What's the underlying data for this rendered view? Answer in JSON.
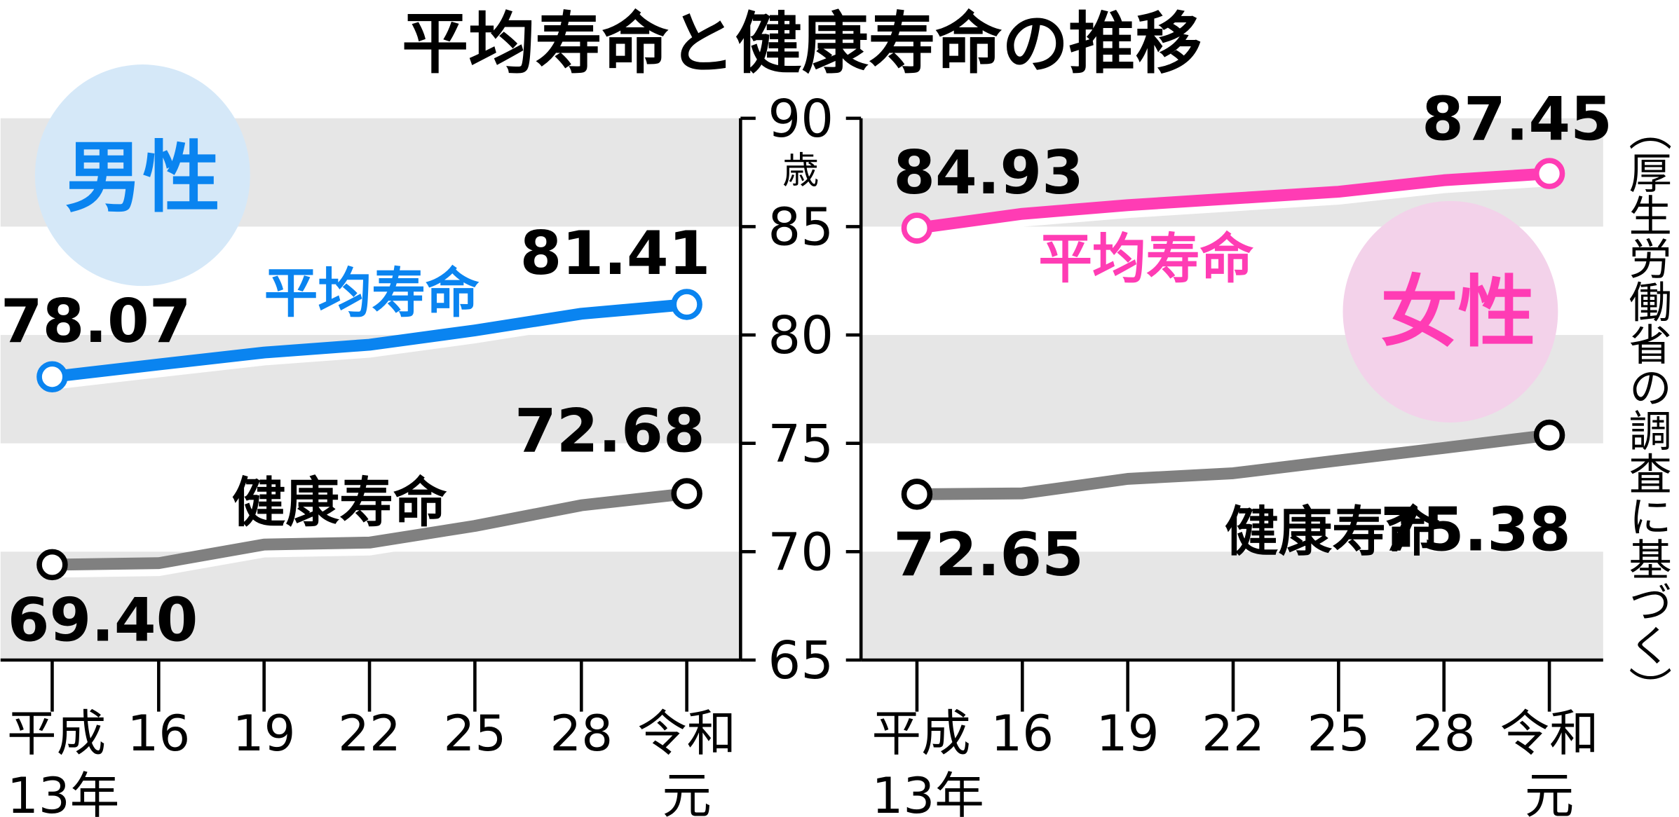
{
  "chart_data": [
    {
      "type": "line",
      "title": "平均寿命と健康寿命の推移",
      "panel_label": "男性",
      "ylabel": "歳",
      "ylim": [
        65,
        90
      ],
      "yticks": [
        "65",
        "70",
        "75",
        "80",
        "85",
        "90"
      ],
      "categories": [
        [
          "平成",
          "13年"
        ],
        [
          "16"
        ],
        [
          "19"
        ],
        [
          "22"
        ],
        [
          "25"
        ],
        [
          "28"
        ],
        [
          "令和",
          "元"
        ]
      ],
      "grid": "alternating bands",
      "series": [
        {
          "name": "平均寿命",
          "color": "#0a84f0",
          "values": [
            78.07,
            78.64,
            79.19,
            79.55,
            80.21,
            80.98,
            81.41
          ],
          "labels": {
            "first": "78.07",
            "last": "81.41"
          }
        },
        {
          "name": "健康寿命",
          "color": "#808080",
          "values": [
            69.4,
            69.47,
            70.33,
            70.42,
            71.19,
            72.14,
            72.68
          ],
          "labels": {
            "first": "69.40",
            "last": "72.68"
          }
        }
      ]
    },
    {
      "type": "line",
      "panel_label": "女性",
      "ylim": [
        65,
        90
      ],
      "categories": [
        [
          "平成",
          "13年"
        ],
        [
          "16"
        ],
        [
          "19"
        ],
        [
          "22"
        ],
        [
          "25"
        ],
        [
          "28"
        ],
        [
          "令和",
          "元"
        ]
      ],
      "series": [
        {
          "name": "平均寿命",
          "color": "#ff3cb4",
          "values": [
            84.93,
            85.59,
            85.99,
            86.3,
            86.61,
            87.14,
            87.45
          ],
          "labels": {
            "first": "84.93",
            "last": "87.45"
          }
        },
        {
          "name": "健康寿命",
          "color": "#808080",
          "values": [
            72.65,
            72.69,
            73.36,
            73.62,
            74.21,
            74.79,
            75.38
          ],
          "labels": {
            "first": "72.65",
            "last": "75.38"
          }
        }
      ]
    }
  ],
  "source": "（厚生労働省の調査に基づく）",
  "colors": {
    "band": "#e6e6e6",
    "male_circle": "#d5e8f8",
    "female_circle": "#f3d2ea"
  }
}
